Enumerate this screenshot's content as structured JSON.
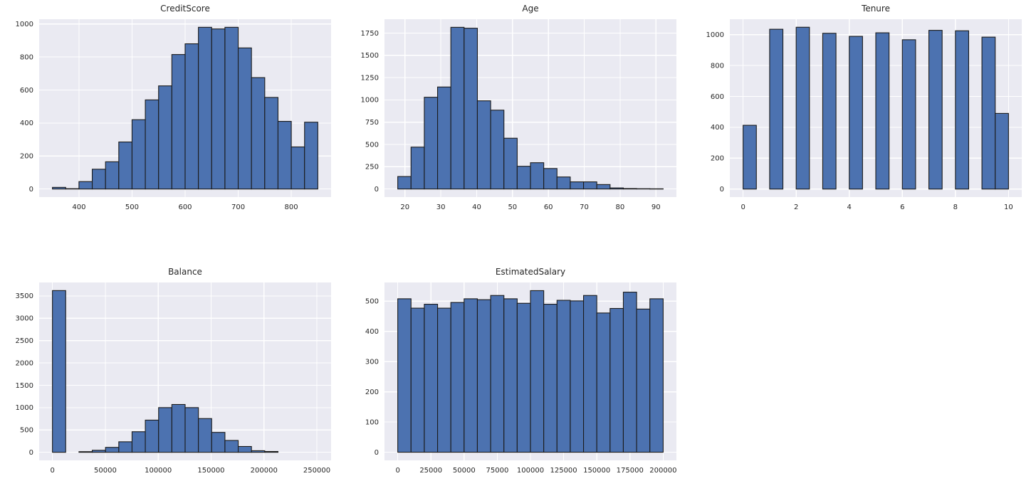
{
  "figure": {
    "kind": "histogram-grid",
    "rows": 2,
    "cols": 3,
    "background": "#ffffff"
  },
  "style": {
    "plot_bg": "#eaeaf2",
    "grid_color": "#ffffff",
    "bar_fill": "#4c72b0",
    "bar_edge": "#1b1b1b",
    "text_color": "#262626"
  },
  "chart_data": [
    {
      "type": "bar",
      "title": "CreditScore",
      "bin_start": 350,
      "bin_width": 25,
      "values": [
        10,
        2,
        45,
        120,
        165,
        285,
        420,
        540,
        625,
        815,
        880,
        980,
        970,
        980,
        855,
        675,
        555,
        410,
        255,
        405
      ],
      "x_ticks": [
        400,
        500,
        600,
        700,
        800
      ],
      "y_ticks": [
        0,
        200,
        400,
        600,
        800,
        1000
      ],
      "xlim": [
        325,
        875
      ],
      "ylim": [
        -49,
        1029
      ],
      "grid": true,
      "legend": false,
      "xlabel": "",
      "ylabel": ""
    },
    {
      "type": "bar",
      "title": "Age",
      "bin_start": 18,
      "bin_width": 3.7,
      "values": [
        140,
        470,
        1030,
        1145,
        1815,
        1805,
        990,
        885,
        570,
        255,
        295,
        230,
        135,
        80,
        80,
        50,
        12,
        5,
        3,
        2
      ],
      "x_ticks": [
        20,
        30,
        40,
        50,
        60,
        70,
        80,
        90
      ],
      "y_ticks": [
        0,
        250,
        500,
        750,
        1000,
        1250,
        1500,
        1750
      ],
      "xlim": [
        14.3,
        95.7
      ],
      "ylim": [
        -91,
        1906
      ],
      "grid": true,
      "legend": false,
      "xlabel": "",
      "ylabel": ""
    },
    {
      "type": "bar",
      "title": "Tenure",
      "bin_start": 0,
      "bin_width": 0.5,
      "values": [
        413,
        0,
        1035,
        0,
        1048,
        0,
        1009,
        0,
        989,
        0,
        1012,
        0,
        967,
        0,
        1028,
        0,
        1025,
        0,
        984,
        490
      ],
      "x_ticks": [
        0,
        2,
        4,
        6,
        8,
        10
      ],
      "y_ticks": [
        0,
        200,
        400,
        600,
        800,
        1000
      ],
      "xlim": [
        -0.5,
        10.5
      ],
      "ylim": [
        -52,
        1100
      ],
      "grid": true,
      "legend": false,
      "xlabel": "",
      "ylabel": ""
    },
    {
      "type": "bar",
      "title": "Balance",
      "bin_start": 0,
      "bin_width": 12545,
      "values": [
        3620,
        0,
        14,
        45,
        110,
        235,
        460,
        720,
        1000,
        1070,
        1000,
        755,
        445,
        265,
        130,
        35,
        18,
        0,
        0,
        0
      ],
      "x_ticks": [
        0,
        50000,
        100000,
        150000,
        200000,
        250000
      ],
      "y_ticks": [
        0,
        500,
        1000,
        1500,
        2000,
        2500,
        3000,
        3500
      ],
      "xlim": [
        -12545,
        263443
      ],
      "ylim": [
        -181,
        3801
      ],
      "grid": true,
      "legend": false,
      "xlabel": "",
      "ylabel": ""
    },
    {
      "type": "bar",
      "title": "EstimatedSalary",
      "bin_start": 0,
      "bin_width": 10000,
      "values": [
        508,
        477,
        490,
        477,
        496,
        508,
        505,
        519,
        508,
        493,
        535,
        490,
        503,
        501,
        519,
        461,
        476,
        530,
        474,
        508
      ],
      "x_ticks": [
        0,
        25000,
        50000,
        75000,
        100000,
        125000,
        150000,
        175000,
        200000
      ],
      "y_ticks": [
        0,
        100,
        200,
        300,
        400,
        500
      ],
      "xlim": [
        -10000,
        210000
      ],
      "ylim": [
        -27,
        562
      ],
      "grid": true,
      "legend": false,
      "xlabel": "",
      "ylabel": ""
    }
  ]
}
